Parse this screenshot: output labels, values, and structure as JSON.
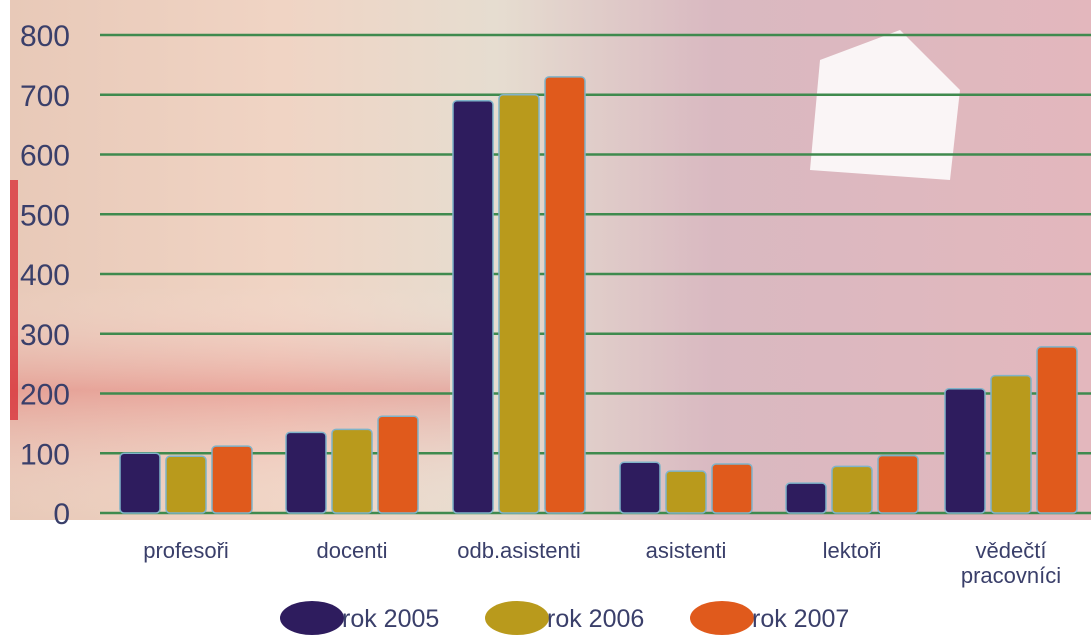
{
  "chart_data": {
    "type": "bar",
    "categories": [
      [
        "profesoři"
      ],
      [
        "docenti"
      ],
      [
        "odb.asistenti"
      ],
      [
        "asistenti"
      ],
      [
        "lektoři"
      ],
      [
        "vědečtí",
        "pracovníci"
      ]
    ],
    "series": [
      {
        "name": "rok 2005",
        "color": "#2e1c5e",
        "values": [
          100,
          135,
          690,
          85,
          50,
          208
        ]
      },
      {
        "name": "rok 2006",
        "color": "#b99a1c",
        "values": [
          95,
          140,
          700,
          70,
          78,
          230
        ]
      },
      {
        "name": "rok 2007",
        "color": "#e05a1c",
        "values": [
          112,
          162,
          730,
          82,
          96,
          278
        ]
      }
    ],
    "yticks": [
      0,
      100,
      200,
      300,
      400,
      500,
      600,
      700,
      800
    ],
    "ylim": [
      0,
      800
    ],
    "grid": true,
    "grid_color": "#3f8a4e",
    "legend_position": "bottom"
  }
}
